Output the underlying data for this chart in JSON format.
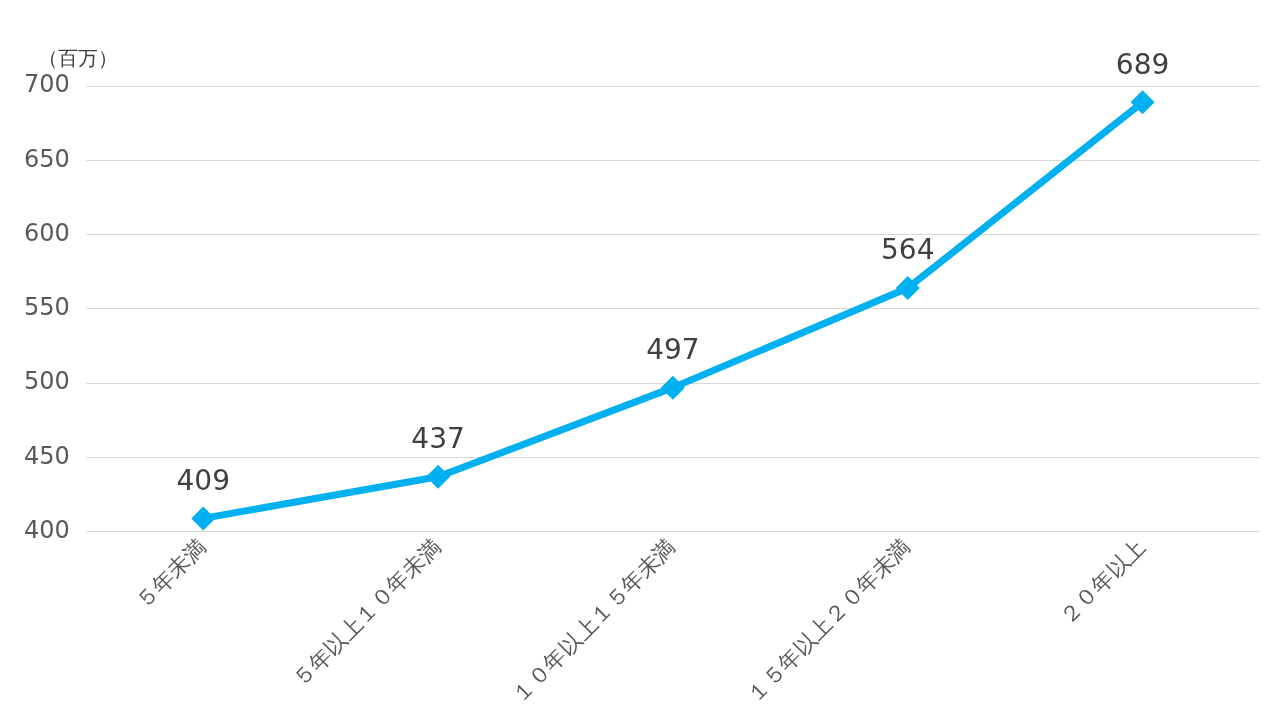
{
  "chart_data": {
    "type": "line",
    "ylabel": "（百万）",
    "categories": [
      "５年未満",
      "５年以上１０年未満",
      "１０年以上１５年未満",
      "１５年以上２０年未満",
      "２０年以上"
    ],
    "series": [
      {
        "color": "#00b0f0",
        "values": [
          409,
          437,
          497,
          564,
          689
        ]
      }
    ],
    "ylim": [
      400,
      700
    ],
    "yticks": [
      400,
      450,
      500,
      550,
      600,
      650,
      700
    ],
    "grid": "y",
    "marker": "diamond",
    "line_style": "solid",
    "data_labels": true,
    "legend": false
  }
}
